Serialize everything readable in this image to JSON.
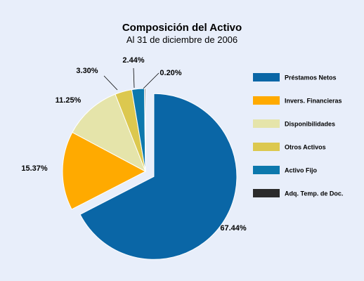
{
  "chart_data": {
    "type": "pie",
    "title": "Composición del Activo",
    "subtitle": "Al 31 de diciembre de 2006",
    "slices": [
      {
        "name": "Préstamos Netos",
        "value": 67.44,
        "label": "67.44%",
        "color": "#0a66a6"
      },
      {
        "name": "Invers. Financieras",
        "value": 15.37,
        "label": "15.37%",
        "color": "#ffaa00"
      },
      {
        "name": "Disponibilidades",
        "value": 11.25,
        "label": "11.25%",
        "color": "#e5e4aa"
      },
      {
        "name": "Otros Activos",
        "value": 3.3,
        "label": "3.30%",
        "color": "#dcc84f"
      },
      {
        "name": "Activo Fijo",
        "value": 2.44,
        "label": "2.44%",
        "color": "#0c78ad"
      },
      {
        "name": "Adq. Temp. de Doc.",
        "value": 0.2,
        "label": "0.20%",
        "color": "#2b2b2b"
      }
    ],
    "exploded": "Préstamos Netos",
    "legend_position": "right"
  }
}
